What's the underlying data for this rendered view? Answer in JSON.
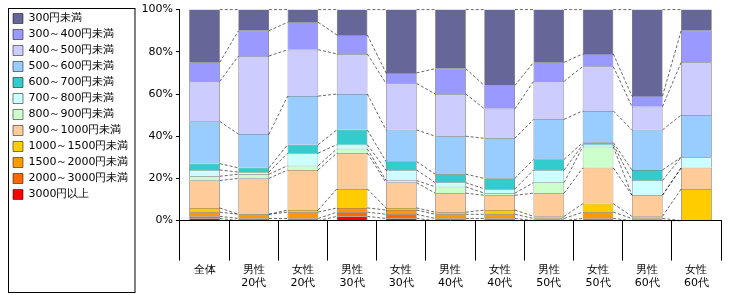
{
  "chart_data": {
    "type": "bar",
    "stacked": true,
    "grid": false,
    "legend": "left",
    "categories": [
      "全体",
      [
        "男性",
        "20代"
      ],
      [
        "女性",
        "20代"
      ],
      [
        "男性",
        "30代"
      ],
      [
        "女性",
        "30代"
      ],
      [
        "男性",
        "40代"
      ],
      [
        "女性",
        "40代"
      ],
      [
        "男性",
        "50代"
      ],
      [
        "女性",
        "50代"
      ],
      [
        "男性",
        "60代"
      ],
      [
        "女性",
        "60代"
      ]
    ],
    "ylim": [
      0,
      100
    ],
    "yticks": [
      {
        "value": 0,
        "label": "0%"
      },
      {
        "value": 20,
        "label": "20%"
      },
      {
        "value": 40,
        "label": "40%"
      },
      {
        "value": 60,
        "label": "60%"
      },
      {
        "value": 80,
        "label": "80%"
      },
      {
        "value": 100,
        "label": "100%"
      }
    ],
    "series": [
      {
        "name": "3000円以上",
        "color": "#ff0000",
        "values": [
          1,
          0,
          0,
          2,
          1,
          0,
          0,
          0,
          0,
          0,
          0
        ]
      },
      {
        "name": "2000～3000円未満",
        "color": "#ff6600",
        "values": [
          1,
          1,
          1,
          2,
          2,
          1,
          1,
          0,
          1,
          0,
          0
        ]
      },
      {
        "name": "1500～2000円未満",
        "color": "#ff9900",
        "values": [
          2,
          2,
          3,
          2,
          2,
          2,
          2,
          1,
          3,
          1,
          0
        ]
      },
      {
        "name": "1000～1500円未満",
        "color": "#ffcc00",
        "values": [
          2,
          0,
          1,
          9,
          1,
          1,
          2,
          1,
          4,
          1,
          15
        ]
      },
      {
        "name": "900～1000円未満",
        "color": "#ffcc99",
        "values": [
          13,
          17,
          19,
          17,
          12,
          9,
          7,
          11,
          17,
          10,
          10
        ]
      },
      {
        "name": "800～900円未満",
        "color": "#ccffcc",
        "values": [
          2,
          2,
          2,
          2,
          1,
          3,
          1,
          5,
          10,
          0,
          0
        ]
      },
      {
        "name": "700～800円未満",
        "color": "#ccffff",
        "values": [
          3,
          1,
          6,
          2,
          5,
          2,
          2,
          6,
          1,
          7,
          5
        ]
      },
      {
        "name": "600～700円未満",
        "color": "#33cccc",
        "values": [
          3,
          2,
          4,
          7,
          4,
          4,
          5,
          5,
          1,
          5,
          0
        ]
      },
      {
        "name": "500～600円未満",
        "color": "#99ccff",
        "values": [
          20,
          16,
          23,
          17,
          15,
          18,
          19,
          19,
          15,
          19,
          20
        ]
      },
      {
        "name": "400～500円未満",
        "color": "#ccccff",
        "values": [
          19,
          37,
          22,
          19,
          22,
          20,
          14,
          18,
          21,
          11,
          25
        ]
      },
      {
        "name": "300～400円未満",
        "color": "#9999ff",
        "values": [
          9,
          12,
          13,
          9,
          5,
          12,
          11,
          9,
          6,
          5,
          15
        ]
      },
      {
        "name": "300円未満",
        "color": "#666699",
        "values": [
          25,
          10,
          6,
          12,
          30,
          28,
          36,
          25,
          21,
          41,
          10
        ]
      }
    ]
  }
}
